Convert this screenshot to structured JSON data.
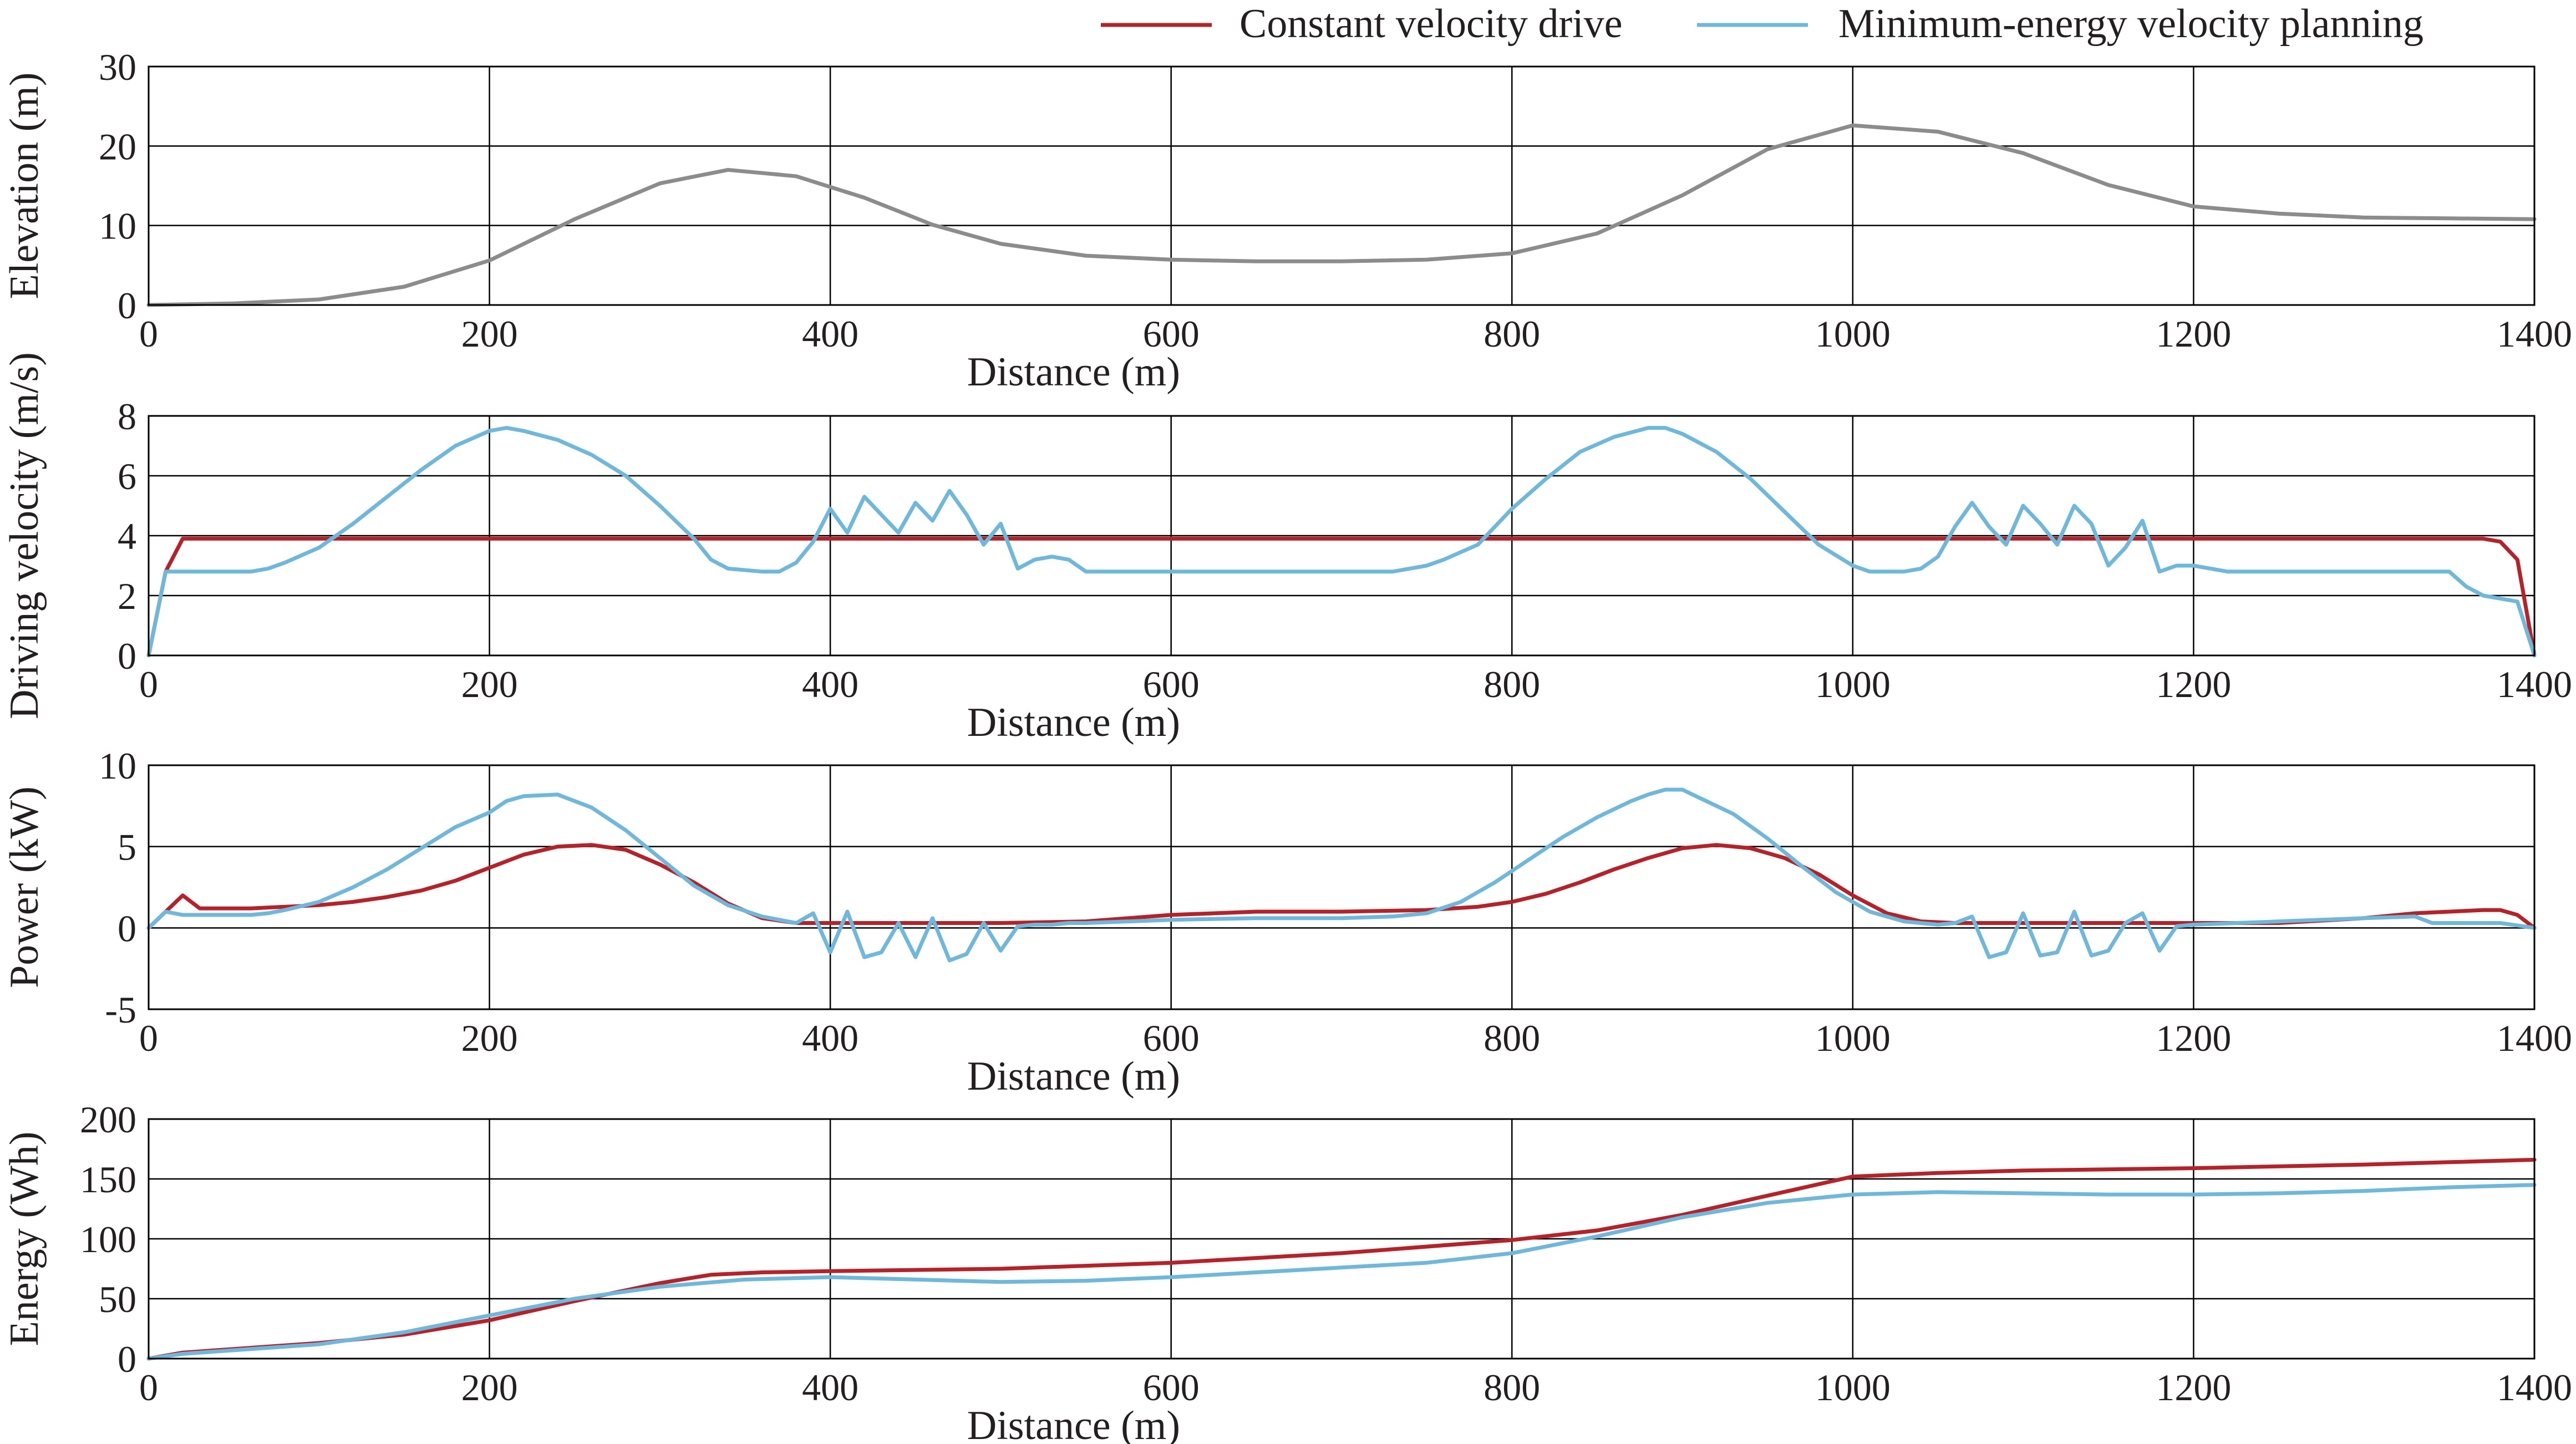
{
  "legend": {
    "placement": "top-right",
    "entries": [
      {
        "label": "Constant velocity drive",
        "color": "#b5232a"
      },
      {
        "label": "Minimum-energy velocity planning",
        "color": "#6fb8dc"
      }
    ]
  },
  "colors": {
    "elevation_line": "#8c8c8c",
    "constant_velocity": "#b5232a",
    "min_energy": "#6fb8dc",
    "grid": "#000000",
    "text": "#231f20"
  },
  "chart_data": [
    {
      "type": "line",
      "ylabel": "Elevation (m)",
      "xlabel": "Distance (m)",
      "xlim": [
        0,
        1400
      ],
      "ylim": [
        0,
        30
      ],
      "xticks": [
        0,
        200,
        400,
        600,
        800,
        1000,
        1200,
        1400
      ],
      "yticks": [
        0,
        10,
        20,
        30
      ],
      "xtick_labels": [
        "0",
        "200",
        "400",
        "600",
        "800",
        "1000",
        "1200",
        "1400"
      ],
      "ytick_labels": [
        "0",
        "10",
        "20",
        "30"
      ],
      "grid": true,
      "series": [
        {
          "key": "elevation",
          "x": [
            0,
            50,
            100,
            150,
            200,
            250,
            300,
            340,
            380,
            420,
            460,
            500,
            550,
            600,
            650,
            700,
            750,
            800,
            850,
            900,
            950,
            1000,
            1050,
            1100,
            1150,
            1200,
            1250,
            1300,
            1350,
            1400
          ],
          "y": [
            0,
            0.2,
            0.7,
            2.3,
            5.6,
            10.8,
            15.3,
            17.0,
            16.2,
            13.5,
            10.1,
            7.7,
            6.2,
            5.7,
            5.5,
            5.5,
            5.7,
            6.5,
            9.0,
            13.8,
            19.6,
            22.6,
            21.8,
            19.1,
            15.1,
            12.4,
            11.5,
            11.0,
            10.9,
            10.8
          ]
        }
      ]
    },
    {
      "type": "line",
      "ylabel": "Driving velocity (m/s)",
      "xlabel": "Distance (m)",
      "xlim": [
        0,
        1400
      ],
      "ylim": [
        0,
        8
      ],
      "xticks": [
        0,
        200,
        400,
        600,
        800,
        1000,
        1200,
        1400
      ],
      "yticks": [
        0,
        2,
        4,
        6,
        8
      ],
      "xtick_labels": [
        "0",
        "200",
        "400",
        "600",
        "800",
        "1000",
        "1200",
        "1400"
      ],
      "ytick_labels": [
        "0",
        "2",
        "4",
        "6",
        "8"
      ],
      "grid": true,
      "series": [
        {
          "key": "constant",
          "x": [
            0,
            10,
            20,
            1370,
            1380,
            1390,
            1400
          ],
          "y": [
            0,
            2.8,
            3.9,
            3.9,
            3.8,
            3.2,
            0
          ]
        },
        {
          "key": "min_energy",
          "x": [
            0,
            10,
            20,
            40,
            60,
            70,
            80,
            100,
            120,
            140,
            160,
            180,
            200,
            210,
            220,
            240,
            260,
            280,
            300,
            320,
            330,
            340,
            360,
            370,
            380,
            390,
            400,
            410,
            420,
            430,
            440,
            450,
            460,
            470,
            480,
            490,
            500,
            510,
            520,
            530,
            540,
            550,
            600,
            650,
            700,
            730,
            740,
            750,
            760,
            780,
            800,
            820,
            840,
            860,
            880,
            890,
            900,
            920,
            940,
            960,
            980,
            1000,
            1010,
            1020,
            1030,
            1040,
            1050,
            1060,
            1070,
            1080,
            1090,
            1100,
            1110,
            1120,
            1130,
            1140,
            1150,
            1160,
            1170,
            1180,
            1190,
            1200,
            1210,
            1220,
            1230,
            1240,
            1250,
            1260,
            1270,
            1280,
            1290,
            1300,
            1310,
            1320,
            1330,
            1340,
            1350,
            1360,
            1370,
            1380,
            1390,
            1400
          ],
          "y": [
            0,
            2.8,
            2.8,
            2.8,
            2.8,
            2.9,
            3.1,
            3.6,
            4.4,
            5.3,
            6.2,
            7.0,
            7.5,
            7.6,
            7.5,
            7.2,
            6.7,
            6.0,
            5.0,
            3.9,
            3.2,
            2.9,
            2.8,
            2.8,
            3.1,
            3.8,
            4.9,
            4.1,
            5.3,
            4.7,
            4.1,
            5.1,
            4.5,
            5.5,
            4.7,
            3.7,
            4.4,
            2.9,
            3.2,
            3.3,
            3.2,
            2.8,
            2.8,
            2.8,
            2.8,
            2.8,
            2.9,
            3.0,
            3.2,
            3.7,
            4.9,
            5.9,
            6.8,
            7.3,
            7.6,
            7.6,
            7.4,
            6.8,
            5.9,
            4.8,
            3.7,
            3.0,
            2.8,
            2.8,
            2.8,
            2.9,
            3.3,
            4.3,
            5.1,
            4.3,
            3.7,
            5.0,
            4.4,
            3.7,
            5.0,
            4.4,
            3.0,
            3.6,
            4.5,
            2.8,
            3.0,
            3.0,
            2.9,
            2.8,
            2.8,
            2.8,
            2.8,
            2.8,
            2.8,
            2.8,
            2.8,
            2.8,
            2.8,
            2.8,
            2.8,
            2.8,
            2.8,
            2.3,
            2.0,
            1.9,
            1.8,
            0
          ]
        }
      ]
    },
    {
      "type": "line",
      "ylabel": "Power (kW)",
      "xlabel": "Distance (m)",
      "xlim": [
        0,
        1400
      ],
      "ylim": [
        -5,
        10
      ],
      "xticks": [
        0,
        200,
        400,
        600,
        800,
        1000,
        1200,
        1400
      ],
      "yticks": [
        -5,
        0,
        5,
        10
      ],
      "xtick_labels": [
        "0",
        "200",
        "400",
        "600",
        "800",
        "1000",
        "1200",
        "1400"
      ],
      "ytick_labels": [
        "-5",
        "0",
        "5",
        "10"
      ],
      "grid": true,
      "series": [
        {
          "key": "constant",
          "x": [
            0,
            10,
            20,
            30,
            40,
            60,
            80,
            100,
            120,
            140,
            160,
            180,
            200,
            220,
            240,
            260,
            280,
            300,
            320,
            340,
            360,
            380,
            400,
            450,
            500,
            550,
            600,
            650,
            700,
            750,
            780,
            800,
            820,
            840,
            860,
            880,
            900,
            920,
            940,
            960,
            980,
            1000,
            1020,
            1040,
            1060,
            1100,
            1150,
            1200,
            1250,
            1300,
            1330,
            1350,
            1370,
            1380,
            1390,
            1400
          ],
          "y": [
            0,
            1.0,
            2.0,
            1.2,
            1.2,
            1.2,
            1.3,
            1.4,
            1.6,
            1.9,
            2.3,
            2.9,
            3.7,
            4.5,
            5.0,
            5.1,
            4.8,
            3.9,
            2.8,
            1.5,
            0.6,
            0.3,
            0.3,
            0.3,
            0.3,
            0.4,
            0.8,
            1.0,
            1.0,
            1.1,
            1.3,
            1.6,
            2.1,
            2.8,
            3.6,
            4.3,
            4.9,
            5.1,
            4.9,
            4.3,
            3.3,
            2.0,
            0.9,
            0.4,
            0.3,
            0.3,
            0.3,
            0.3,
            0.3,
            0.6,
            0.9,
            1.0,
            1.1,
            1.1,
            0.8,
            0
          ]
        },
        {
          "key": "min_energy",
          "x": [
            0,
            10,
            20,
            40,
            60,
            70,
            80,
            100,
            120,
            140,
            160,
            180,
            200,
            210,
            220,
            240,
            260,
            280,
            300,
            320,
            340,
            360,
            380,
            390,
            400,
            410,
            420,
            430,
            440,
            450,
            460,
            470,
            480,
            490,
            500,
            510,
            520,
            530,
            540,
            550,
            600,
            650,
            700,
            730,
            750,
            770,
            790,
            810,
            830,
            850,
            870,
            880,
            890,
            900,
            910,
            930,
            950,
            970,
            990,
            1010,
            1030,
            1050,
            1060,
            1070,
            1080,
            1090,
            1100,
            1110,
            1120,
            1130,
            1140,
            1150,
            1160,
            1170,
            1180,
            1190,
            1200,
            1250,
            1300,
            1330,
            1340,
            1360,
            1380,
            1400
          ],
          "y": [
            0,
            1.0,
            0.8,
            0.8,
            0.8,
            0.9,
            1.1,
            1.6,
            2.5,
            3.6,
            4.9,
            6.2,
            7.1,
            7.8,
            8.1,
            8.2,
            7.4,
            6.0,
            4.3,
            2.6,
            1.4,
            0.7,
            0.3,
            0.9,
            -1.5,
            1.0,
            -1.8,
            -1.5,
            0.3,
            -1.8,
            0.6,
            -2.0,
            -1.6,
            0.3,
            -1.4,
            0.1,
            0.2,
            0.2,
            0.3,
            0.3,
            0.5,
            0.6,
            0.6,
            0.7,
            0.9,
            1.6,
            2.8,
            4.2,
            5.6,
            6.8,
            7.8,
            8.2,
            8.5,
            8.5,
            8.0,
            7.0,
            5.5,
            3.8,
            2.2,
            1.0,
            0.4,
            0.2,
            0.3,
            0.7,
            -1.8,
            -1.5,
            0.9,
            -1.7,
            -1.5,
            1.0,
            -1.7,
            -1.4,
            0.3,
            0.9,
            -1.4,
            0.1,
            0.2,
            0.4,
            0.6,
            0.7,
            0.3,
            0.3,
            0.3,
            0
          ]
        }
      ]
    },
    {
      "type": "line",
      "ylabel": "Energy (Wh)",
      "xlabel": "Distance (m)",
      "xlim": [
        0,
        1400
      ],
      "ylim": [
        0,
        200
      ],
      "xticks": [
        0,
        200,
        400,
        600,
        800,
        1000,
        1200,
        1400
      ],
      "yticks": [
        0,
        50,
        100,
        150,
        200
      ],
      "xtick_labels": [
        "0",
        "200",
        "400",
        "600",
        "800",
        "1000",
        "1200",
        "1400"
      ],
      "ytick_labels": [
        "0",
        "50",
        "100",
        "150",
        "200"
      ],
      "grid": true,
      "series": [
        {
          "key": "constant",
          "x": [
            0,
            20,
            50,
            100,
            150,
            200,
            250,
            300,
            330,
            360,
            400,
            500,
            600,
            700,
            800,
            850,
            900,
            950,
            1000,
            1050,
            1100,
            1200,
            1300,
            1350,
            1400
          ],
          "y": [
            0,
            5,
            8,
            13,
            20,
            32,
            48,
            63,
            70,
            72,
            73,
            75,
            80,
            88,
            99,
            107,
            120,
            136,
            152,
            155,
            157,
            159,
            162,
            164,
            166
          ]
        },
        {
          "key": "min_energy",
          "x": [
            0,
            20,
            50,
            100,
            150,
            200,
            250,
            300,
            350,
            400,
            450,
            500,
            550,
            600,
            650,
            700,
            750,
            800,
            850,
            900,
            950,
            1000,
            1050,
            1100,
            1150,
            1200,
            1250,
            1300,
            1350,
            1400
          ],
          "y": [
            0,
            4,
            7,
            12,
            22,
            36,
            50,
            60,
            66,
            68,
            66,
            64,
            65,
            68,
            72,
            76,
            80,
            88,
            102,
            118,
            130,
            137,
            139,
            138,
            137,
            137,
            138,
            140,
            143,
            145
          ]
        }
      ]
    }
  ]
}
